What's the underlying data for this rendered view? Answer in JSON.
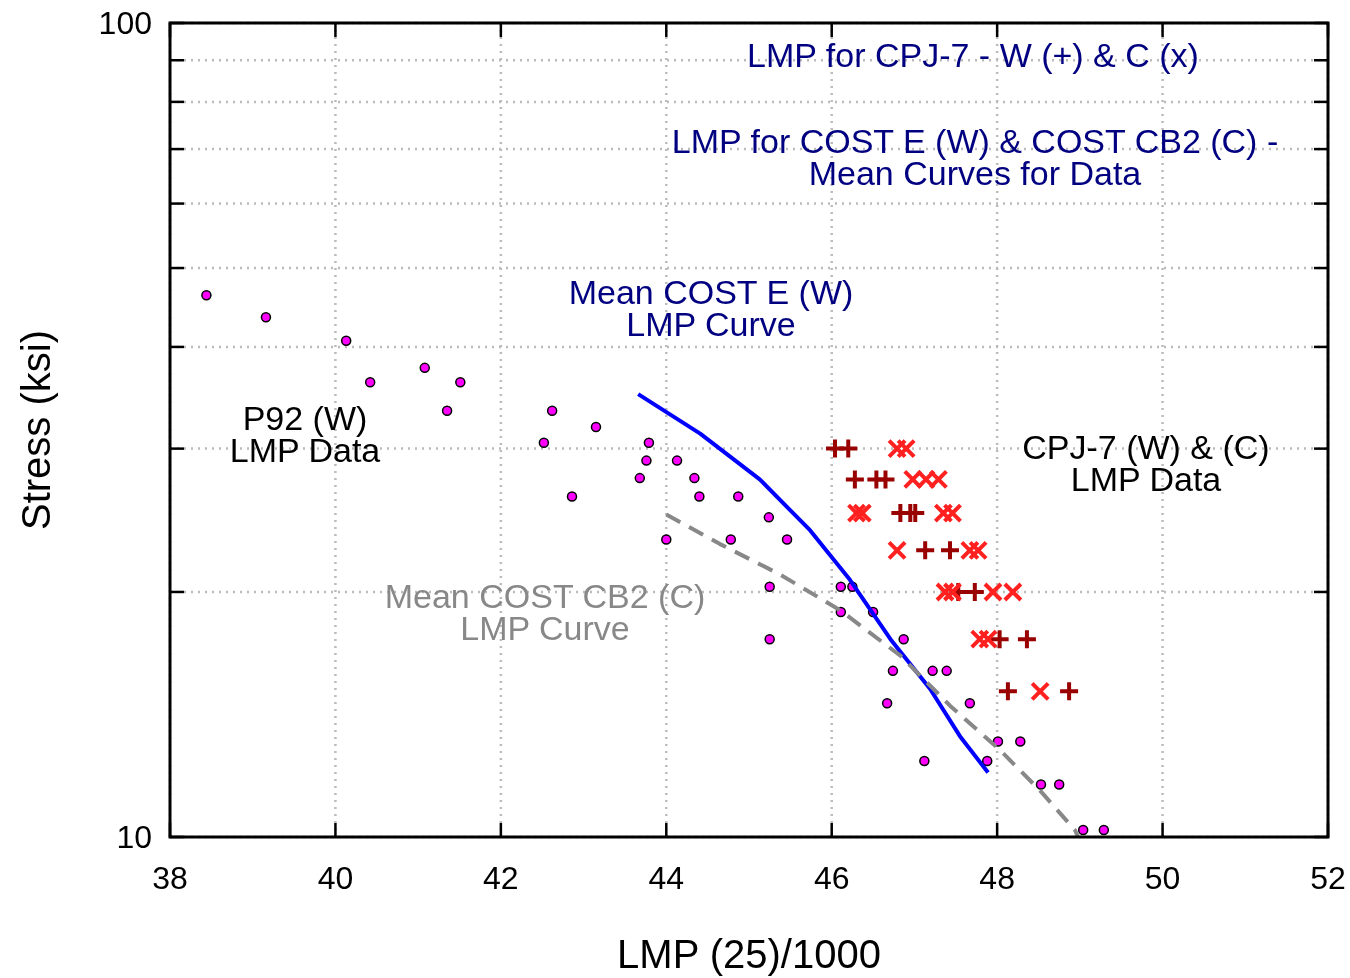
{
  "chart_data": {
    "type": "scatter",
    "xlabel": "LMP (25)/1000",
    "ylabel": "Stress (ksi)",
    "log": "y",
    "grid": true,
    "xlim": [
      38,
      52
    ],
    "xticks": [
      38,
      40,
      42,
      44,
      46,
      48,
      50,
      52
    ],
    "ylim": [
      10,
      100
    ],
    "yticks": [
      10,
      {
        "value": 20,
        "label": null
      },
      {
        "value": 30,
        "label": null
      },
      {
        "value": 40,
        "label": null
      },
      {
        "value": 50,
        "label": null
      },
      {
        "value": 60,
        "label": null
      },
      {
        "value": 70,
        "label": null
      },
      {
        "value": 80,
        "label": null
      },
      {
        "value": 90,
        "label": null
      },
      100
    ],
    "annotations": [
      "LMP for CPJ-7 - W (+) & C (x)",
      "LMP for COST E (W) & COST CB2 (C) -\nMean Curves for Data",
      "Mean COST E (W)\nLMP Curve",
      "P92 (W)\nLMP Data",
      "CPJ-7 (W) & (C)\nLMP Data",
      "Mean COST CB2 (C)\nLMP Curve"
    ],
    "series": [
      {
        "marker": "circle",
        "color": "#ff00ff",
        "x": [
          38.44,
          39.16,
          40.13,
          40.42,
          41.08,
          41.51,
          41.35,
          42.62,
          43.15,
          42.52,
          43.79,
          43.76,
          43.68,
          44.13,
          44.34,
          44.4,
          44.87,
          42.86,
          45.24,
          44.0,
          44.78,
          45.46,
          45.25,
          46.11,
          46.25,
          46.11,
          46.5,
          45.25,
          46.87,
          46.74,
          47.22,
          47.39,
          46.67,
          47.67,
          48.01,
          48.28,
          47.12,
          47.88,
          48.53,
          48.75,
          49.04,
          49.29
        ],
        "values": [
          46.3,
          43.5,
          40.7,
          36.2,
          37.7,
          36.2,
          33.4,
          33.4,
          31.9,
          30.5,
          30.5,
          29.0,
          27.6,
          29.0,
          27.6,
          26.2,
          26.2,
          26.2,
          24.7,
          23.2,
          23.2,
          23.2,
          20.3,
          20.3,
          20.3,
          18.9,
          18.9,
          17.5,
          17.5,
          16.0,
          16.0,
          16.0,
          14.6,
          14.6,
          13.1,
          13.1,
          12.4,
          12.4,
          11.6,
          11.6,
          10.2,
          10.2
        ]
      },
      {
        "marker": "plus",
        "color": "#990000",
        "x": [
          46.04,
          46.2,
          46.28,
          46.54,
          46.65,
          46.83,
          46.95,
          47.01,
          47.13,
          47.43,
          47.53,
          47.73,
          48.03,
          48.36,
          48.13,
          48.87
        ],
        "values": [
          30,
          30,
          27.5,
          27.5,
          27.5,
          25,
          25,
          25,
          22.5,
          22.5,
          20,
          20,
          17.5,
          17.5,
          15.1,
          15.1
        ]
      },
      {
        "marker": "cross",
        "color": "#ff2020",
        "x": [
          46.79,
          46.9,
          46.98,
          47.14,
          47.29,
          46.3,
          46.37,
          47.35,
          47.46,
          46.79,
          47.67,
          47.77,
          47.37,
          47.46,
          47.95,
          48.19,
          47.79,
          47.89,
          48.52
        ],
        "values": [
          30,
          30,
          27.5,
          27.5,
          27.5,
          25,
          25,
          25,
          25,
          22.5,
          22.5,
          22.5,
          20,
          20,
          20,
          20,
          17.5,
          17.5,
          15.1
        ]
      },
      {
        "type": "line",
        "line_style": "solid",
        "color": "#0000ff",
        "x": [
          43.66,
          44.41,
          45.13,
          45.74,
          46.22,
          46.71,
          47.19,
          47.55,
          47.89
        ],
        "values": [
          35.0,
          31.3,
          27.5,
          23.8,
          20.7,
          17.5,
          15.2,
          13.3,
          12.0
        ]
      },
      {
        "type": "line",
        "line_style": "dashed",
        "color": "#888888",
        "x": [
          44.0,
          44.65,
          45.38,
          46.1,
          46.83,
          47.43,
          48.03,
          48.52,
          48.94,
          48.98
        ],
        "values": [
          24.9,
          22.9,
          21.0,
          19.0,
          16.7,
          14.5,
          12.8,
          11.4,
          10.2,
          10
        ]
      }
    ]
  }
}
